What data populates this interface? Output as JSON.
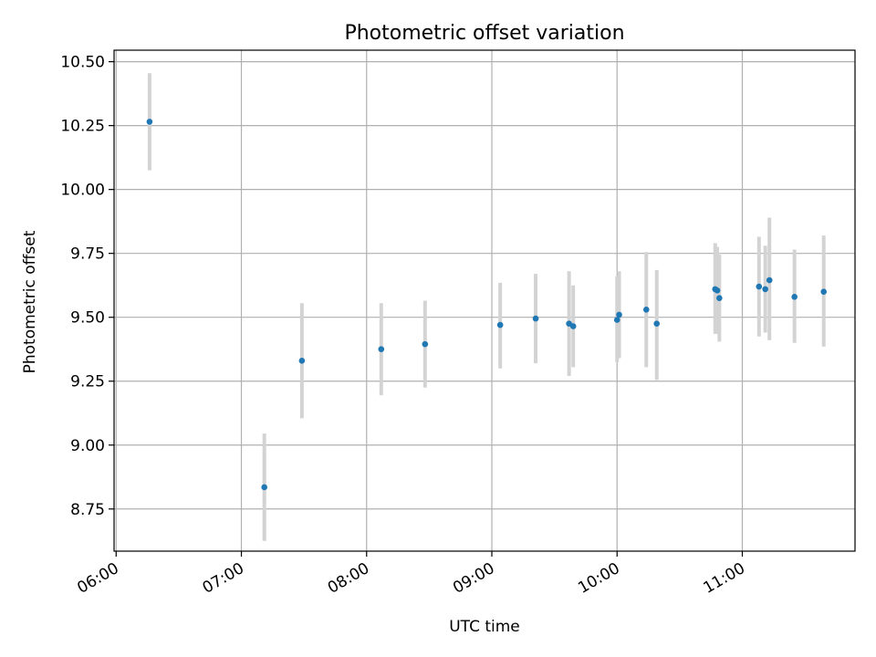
{
  "chart_data": {
    "type": "scatter",
    "title": "Photometric offset variation",
    "xlabel": "UTC time",
    "ylabel": "Photometric offset",
    "x_axis": "time",
    "xlim": [
      "05:59",
      "11:54"
    ],
    "ylim": [
      8.585,
      10.545
    ],
    "xticks": [
      "06:00",
      "07:00",
      "08:00",
      "09:00",
      "10:00",
      "11:00"
    ],
    "yticks": [
      8.75,
      9.0,
      9.25,
      9.5,
      9.75,
      10.0,
      10.25,
      10.5
    ],
    "ytick_labels": [
      "8.75",
      "9.00",
      "9.25",
      "9.50",
      "9.75",
      "10.00",
      "10.25",
      "10.50"
    ],
    "grid": true,
    "legend": "none",
    "colors": {
      "point": "#1f77b4",
      "errorbar": "#d3d3d3",
      "grid": "#b0b0b0"
    },
    "points": [
      {
        "t": "06:16",
        "y": 10.265,
        "lo": 10.075,
        "hi": 10.455
      },
      {
        "t": "07:11",
        "y": 8.835,
        "lo": 8.625,
        "hi": 9.045
      },
      {
        "t": "07:29",
        "y": 9.33,
        "lo": 9.105,
        "hi": 9.555
      },
      {
        "t": "08:07",
        "y": 9.375,
        "lo": 9.195,
        "hi": 9.555
      },
      {
        "t": "08:28",
        "y": 9.395,
        "lo": 9.225,
        "hi": 9.565
      },
      {
        "t": "09:04",
        "y": 9.47,
        "lo": 9.3,
        "hi": 9.635
      },
      {
        "t": "09:21",
        "y": 9.495,
        "lo": 9.32,
        "hi": 9.67
      },
      {
        "t": "09:37",
        "y": 9.475,
        "lo": 9.27,
        "hi": 9.68
      },
      {
        "t": "09:39",
        "y": 9.465,
        "lo": 9.305,
        "hi": 9.625
      },
      {
        "t": "10:00",
        "y": 9.49,
        "lo": 9.325,
        "hi": 9.66
      },
      {
        "t": "10:01",
        "y": 9.51,
        "lo": 9.34,
        "hi": 9.68
      },
      {
        "t": "10:14",
        "y": 9.53,
        "lo": 9.305,
        "hi": 9.755
      },
      {
        "t": "10:19",
        "y": 9.475,
        "lo": 9.255,
        "hi": 9.685
      },
      {
        "t": "10:47",
        "y": 9.61,
        "lo": 9.435,
        "hi": 9.79
      },
      {
        "t": "10:48",
        "y": 9.605,
        "lo": 9.435,
        "hi": 9.775
      },
      {
        "t": "10:49",
        "y": 9.575,
        "lo": 9.405,
        "hi": 9.745
      },
      {
        "t": "11:08",
        "y": 9.62,
        "lo": 9.425,
        "hi": 9.815
      },
      {
        "t": "11:11",
        "y": 9.61,
        "lo": 9.44,
        "hi": 9.78
      },
      {
        "t": "11:13",
        "y": 9.645,
        "lo": 9.41,
        "hi": 9.89
      },
      {
        "t": "11:25",
        "y": 9.58,
        "lo": 9.4,
        "hi": 9.765
      },
      {
        "t": "11:39",
        "y": 9.6,
        "lo": 9.385,
        "hi": 9.82
      }
    ]
  }
}
